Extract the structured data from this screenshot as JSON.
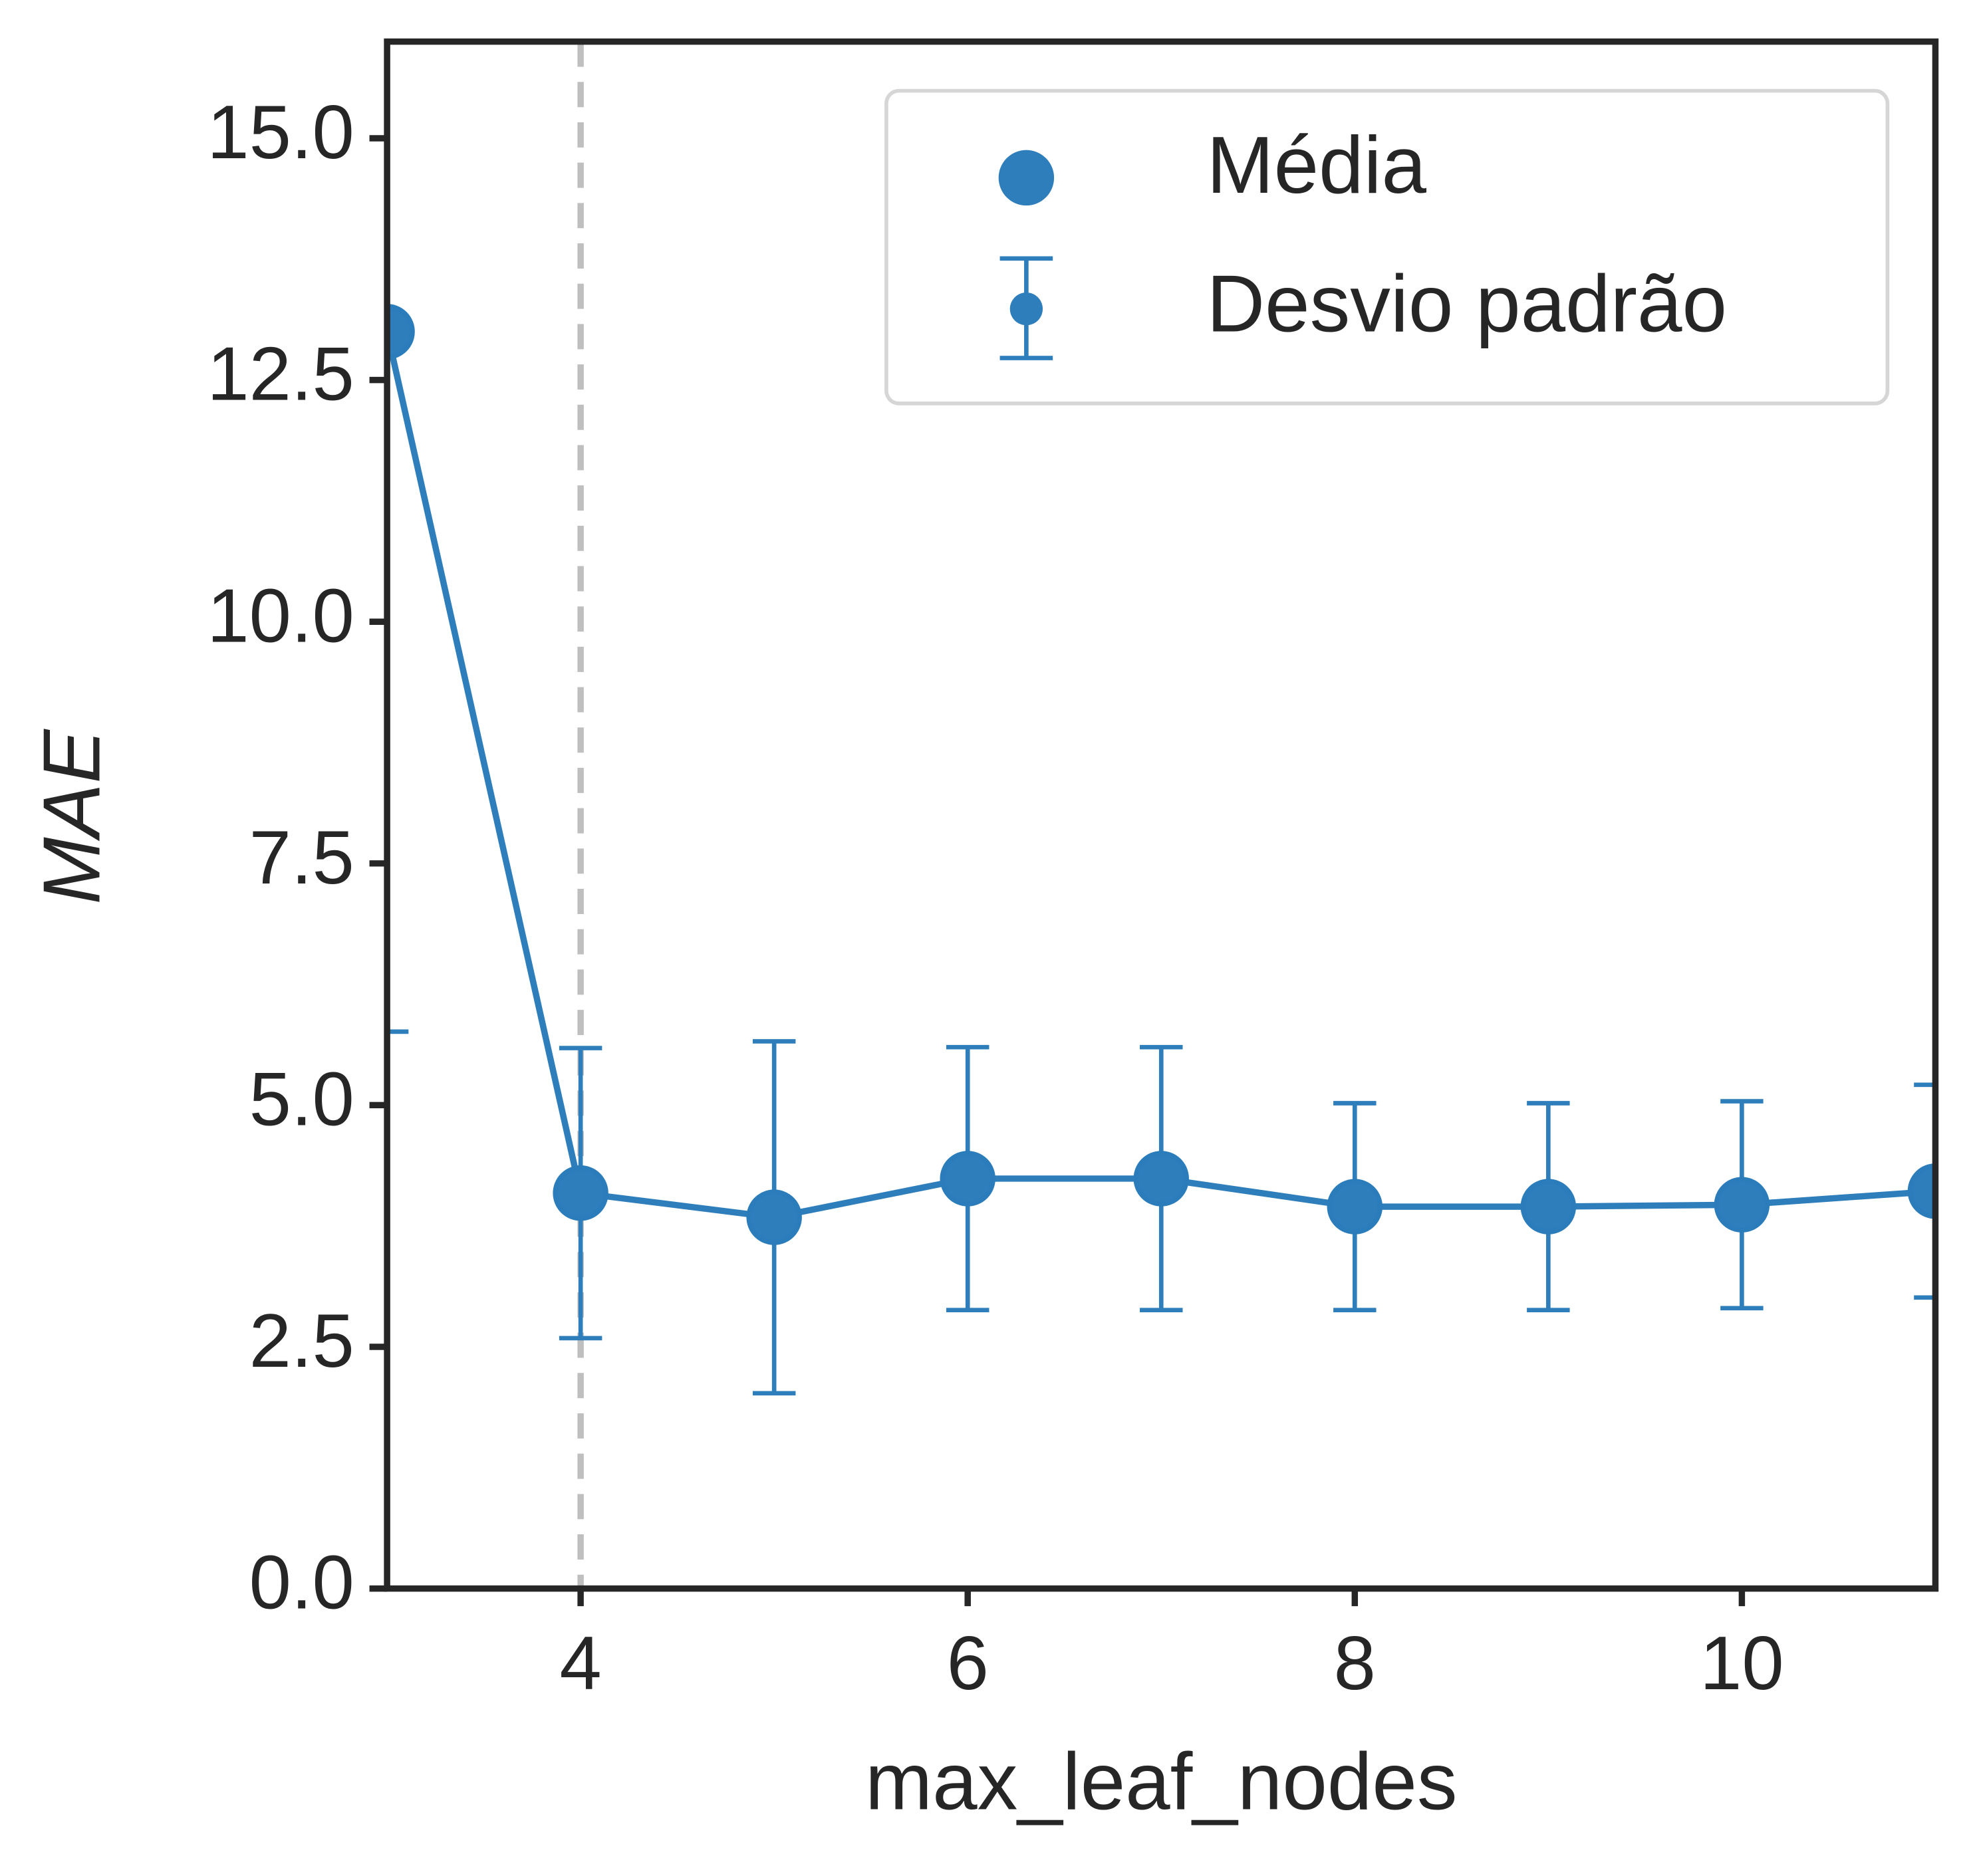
{
  "chart_data": {
    "type": "line",
    "x": [
      3,
      4,
      5,
      6,
      7,
      8,
      9,
      10,
      11
    ],
    "series": [
      {
        "name": "Média",
        "color": "#2e7ebb",
        "values": [
          13.0,
          4.09,
          3.84,
          4.24,
          4.24,
          3.95,
          3.95,
          3.97,
          4.11
        ],
        "error_name": "Desvio padrão",
        "errors": [
          7.24,
          1.5,
          1.82,
          1.36,
          1.36,
          1.07,
          1.07,
          1.07,
          1.1
        ]
      }
    ],
    "xlim": [
      3,
      11
    ],
    "xticks": [
      4,
      6,
      8,
      10
    ],
    "ylim": [
      0,
      16
    ],
    "yticks": [
      {
        "value": 0,
        "label": "0.0"
      },
      2.5,
      {
        "value": 5,
        "label": "5.0"
      },
      7.5,
      {
        "value": 10,
        "label": "10.0"
      },
      12.5,
      {
        "value": 15,
        "label": "15.0"
      }
    ],
    "xlabel": "max_leaf_nodes",
    "ylabel": "MAE",
    "vline": 4,
    "vline_color": "#bfbfbf",
    "legend": "upper right"
  }
}
